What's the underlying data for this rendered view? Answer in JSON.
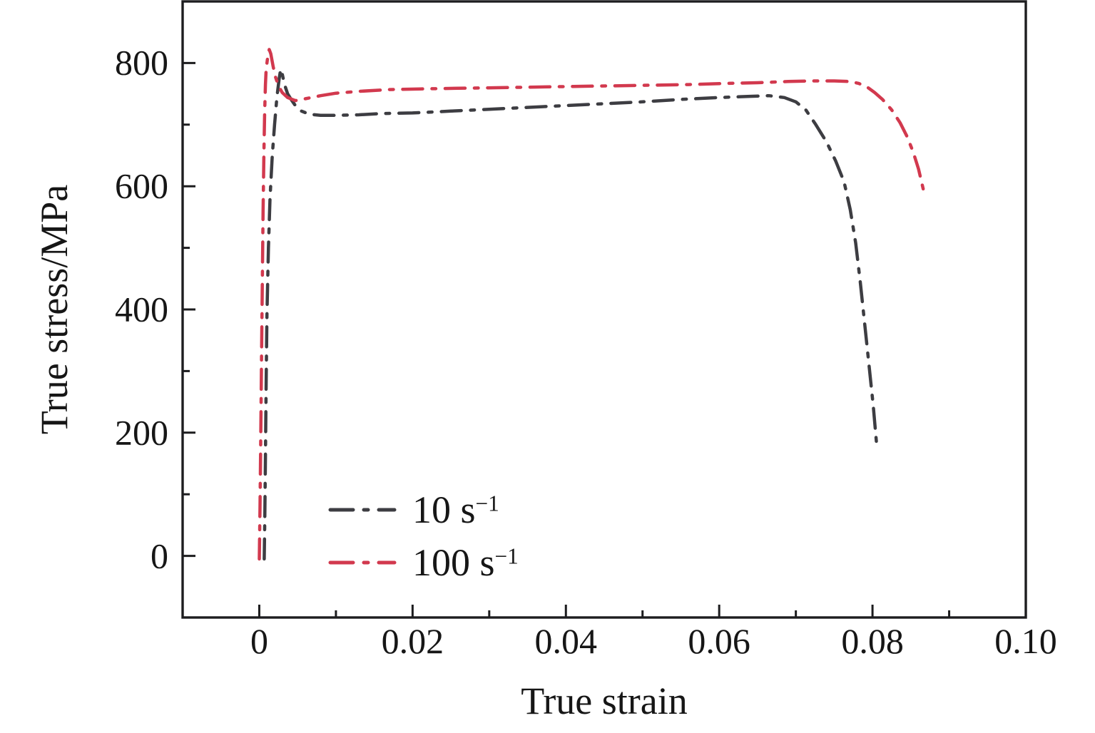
{
  "figure": {
    "x_axis_title": "True strain",
    "y_axis_title": "True stress/MPa"
  },
  "legend": {
    "items": [
      {
        "label_base": "10 s",
        "exponent": "−1",
        "color": "#3d3d42"
      },
      {
        "label_base": "100 s",
        "exponent": "−1",
        "color": "#d2394e"
      }
    ]
  },
  "style": {
    "axis_color": "#1d1d1f",
    "text_color": "#161616",
    "background": "#ffffff"
  },
  "chart_data": {
    "type": "line",
    "title": "",
    "xlabel": "True strain",
    "ylabel": "True stress/MPa",
    "xlim": [
      -0.01,
      0.1
    ],
    "ylim": [
      -100,
      900
    ],
    "grid": false,
    "legend_position": "inside lower-left",
    "line_style": "dash-dot",
    "x_major_ticks": [
      0,
      0.02,
      0.04,
      0.06,
      0.08,
      0.1
    ],
    "x_tick_labels": [
      "0",
      "0.02",
      "0.04",
      "0.06",
      "0.08",
      "0.10"
    ],
    "x_minor_ticks": [
      0.01,
      0.03,
      0.05,
      0.07,
      0.09
    ],
    "y_major_ticks": [
      0,
      200,
      400,
      600,
      800
    ],
    "y_tick_labels": [
      "0",
      "200",
      "400",
      "600",
      "800"
    ],
    "y_minor_ticks": [
      100,
      300,
      500,
      700
    ],
    "series": [
      {
        "name": "10 s⁻¹",
        "id": "10s",
        "color": "#3d3d42",
        "points": [
          [
            0.00065,
            -5
          ],
          [
            0.00072,
            60
          ],
          [
            0.0008,
            160
          ],
          [
            0.0009,
            280
          ],
          [
            0.001,
            390
          ],
          [
            0.0012,
            500
          ],
          [
            0.0014,
            580
          ],
          [
            0.0017,
            650
          ],
          [
            0.002,
            700
          ],
          [
            0.0023,
            745
          ],
          [
            0.0026,
            775
          ],
          [
            0.0028,
            790
          ],
          [
            0.003,
            782
          ],
          [
            0.0033,
            765
          ],
          [
            0.0037,
            750
          ],
          [
            0.0042,
            740
          ],
          [
            0.0047,
            731
          ],
          [
            0.0055,
            722
          ],
          [
            0.0065,
            717
          ],
          [
            0.008,
            715
          ],
          [
            0.01,
            715
          ],
          [
            0.013,
            716
          ],
          [
            0.016,
            718
          ],
          [
            0.02,
            719
          ],
          [
            0.025,
            722
          ],
          [
            0.03,
            725
          ],
          [
            0.035,
            728
          ],
          [
            0.04,
            731
          ],
          [
            0.045,
            734
          ],
          [
            0.05,
            737
          ],
          [
            0.055,
            741
          ],
          [
            0.06,
            744
          ],
          [
            0.064,
            746
          ],
          [
            0.0665,
            747
          ],
          [
            0.0685,
            744
          ],
          [
            0.07,
            737
          ],
          [
            0.0713,
            724
          ],
          [
            0.0726,
            700
          ],
          [
            0.074,
            672
          ],
          [
            0.0752,
            641
          ],
          [
            0.0763,
            607
          ],
          [
            0.0771,
            562
          ],
          [
            0.0778,
            508
          ],
          [
            0.0784,
            445
          ],
          [
            0.079,
            375
          ],
          [
            0.0796,
            303
          ],
          [
            0.0801,
            243
          ],
          [
            0.0805,
            186
          ]
        ]
      },
      {
        "name": "100 s⁻¹",
        "id": "100s",
        "color": "#d2394e",
        "points": [
          [
            0.0,
            -5
          ],
          [
            0.0001,
            80
          ],
          [
            0.0002,
            200
          ],
          [
            0.0003,
            330
          ],
          [
            0.0004,
            450
          ],
          [
            0.0005,
            560
          ],
          [
            0.0006,
            650
          ],
          [
            0.0007,
            720
          ],
          [
            0.0008,
            765
          ],
          [
            0.0009,
            790
          ],
          [
            0.0011,
            810
          ],
          [
            0.0013,
            822
          ],
          [
            0.0015,
            815
          ],
          [
            0.0018,
            795
          ],
          [
            0.0021,
            778
          ],
          [
            0.0025,
            763
          ],
          [
            0.003,
            752
          ],
          [
            0.0037,
            744
          ],
          [
            0.0047,
            739
          ],
          [
            0.006,
            742
          ],
          [
            0.008,
            747
          ],
          [
            0.01,
            751
          ],
          [
            0.013,
            754
          ],
          [
            0.017,
            757
          ],
          [
            0.021,
            758
          ],
          [
            0.026,
            759
          ],
          [
            0.031,
            760
          ],
          [
            0.036,
            761
          ],
          [
            0.041,
            762
          ],
          [
            0.046,
            763
          ],
          [
            0.051,
            764
          ],
          [
            0.056,
            765
          ],
          [
            0.061,
            767
          ],
          [
            0.065,
            768
          ],
          [
            0.069,
            770
          ],
          [
            0.072,
            771
          ],
          [
            0.075,
            771
          ],
          [
            0.077,
            770
          ],
          [
            0.0782,
            767
          ],
          [
            0.0793,
            761
          ],
          [
            0.0803,
            752
          ],
          [
            0.0813,
            741
          ],
          [
            0.0825,
            724
          ],
          [
            0.0836,
            703
          ],
          [
            0.0845,
            681
          ],
          [
            0.0853,
            656
          ],
          [
            0.086,
            628
          ],
          [
            0.0867,
            591
          ]
        ]
      }
    ]
  }
}
